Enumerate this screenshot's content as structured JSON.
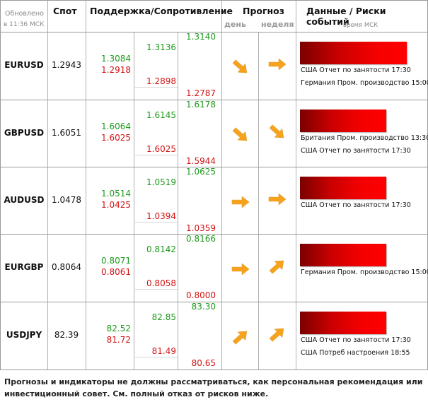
{
  "header": {
    "updated_line1": "Обновлено",
    "updated_line2": "в 11:36 МСК",
    "spot": "Спот",
    "support_resistance": "Поддержка/Сопротивление",
    "forecast": "Прогноз",
    "forecast_day": "день",
    "forecast_week": "неделя",
    "events": "Данные / Риски событий",
    "events_time": "время МСК"
  },
  "colors": {
    "support": "#1d9a1d",
    "resistance": "#d41414",
    "arrow": "#f7a21b",
    "risk_bar": "#ff0000"
  },
  "rows": [
    {
      "pair": "EURUSD",
      "spot": "1.2943",
      "r3": "1.3140",
      "r2": "1.3136",
      "r1": "1.3084",
      "s1": "1.2918",
      "s2": "1.2898",
      "s3": "1.2787",
      "day": "down-right-arrow",
      "week": "right-arrow",
      "risk_level": 0.86,
      "events": [
        "США Отчет по занятости 17:30",
        "Германия Пром. производство 15:00"
      ]
    },
    {
      "pair": "GBPUSD",
      "spot": "1.6051",
      "r3": "1.6178",
      "r2": "1.6145",
      "r1": "1.6064",
      "s1": "1.6025",
      "s2": "1.6025",
      "s3": "1.5944",
      "day": "down-right-arrow",
      "week": "down-right-arrow",
      "risk_level": 0.7,
      "events": [
        "Британия Пром. производство 13:30",
        "США Отчет по занятости 17:30"
      ]
    },
    {
      "pair": "AUDUSD",
      "spot": "1.0478",
      "r3": "1.0625",
      "r2": "1.0519",
      "r1": "1.0514",
      "s1": "1.0425",
      "s2": "1.0394",
      "s3": "1.0359",
      "day": "right-arrow",
      "week": "right-arrow",
      "risk_level": 0.7,
      "events": [
        "США Отчет по занятости 17:30"
      ]
    },
    {
      "pair": "EURGBP",
      "spot": "0.8064",
      "r3": "0.8166",
      "r2": "0.8142",
      "r1": "0.8071",
      "s1": "0.8061",
      "s2": "0.8058",
      "s3": "0.8000",
      "day": "right-arrow",
      "week": "up-right-arrow",
      "risk_level": 0.7,
      "events": [
        "Германия Пром. производство 15:00"
      ]
    },
    {
      "pair": "USDJPY",
      "spot": "82.39",
      "r3": "83.30",
      "r2": "82.85",
      "r1": "82.52",
      "s1": "81.72",
      "s2": "81.49",
      "s3": "80.65",
      "day": "up-right-arrow",
      "week": "up-right-arrow",
      "risk_level": 0.7,
      "events": [
        "США Отчет по занятости 17:30",
        "США Потреб настроения 18:55"
      ]
    }
  ],
  "disclaimer": "Прогнозы и индикаторы не должны рассматриваться, как персональная рекомендация или инвестиционный совет. См. полный отказ от рисков ниже."
}
